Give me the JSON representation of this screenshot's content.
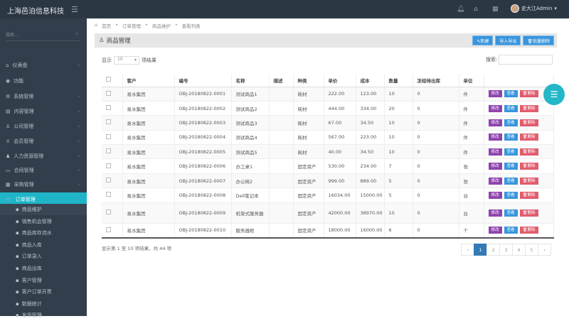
{
  "app": {
    "title": "上海邑泊信息科技",
    "user": "史大江Admin"
  },
  "sidebar": {
    "search_placeholder": "搜索...",
    "items": [
      {
        "label": "仪表盘",
        "icon": "⌂"
      },
      {
        "label": "功能",
        "icon": "◉"
      },
      {
        "label": "系统管理",
        "icon": "⚙"
      },
      {
        "label": "内容管理",
        "icon": "▤"
      },
      {
        "label": "公司管理",
        "icon": "♙"
      },
      {
        "label": "会员管理",
        "icon": "♕"
      },
      {
        "label": "人力资源管理",
        "icon": "♟"
      },
      {
        "label": "合同管理",
        "icon": "▭"
      },
      {
        "label": "采购管理",
        "icon": "▦"
      },
      {
        "label": "订单管理",
        "icon": "🛒"
      }
    ],
    "sub": [
      "商品维护",
      "销售机会管理",
      "商品库存流水",
      "商品入库",
      "订单录入",
      "商品出库",
      "客户管理",
      "客户订单开票",
      "数据统计",
      "发货管理"
    ]
  },
  "breadcrumb": [
    "首页",
    "订单管理",
    "商品维护",
    "查看列表"
  ],
  "panel": {
    "title": "商品管理",
    "new": "✎新建",
    "import": "导入导出",
    "batch_delete": "🗑批量删除"
  },
  "table_controls": {
    "show": "显示",
    "page_size": "10",
    "records": "项结果",
    "search": "搜索:"
  },
  "columns": [
    "客户",
    "编号",
    "名称",
    "描述",
    "种类",
    "单价",
    "成本",
    "数量",
    "冻结待出库",
    "单位"
  ],
  "actions": {
    "edit": "修改",
    "view": "查看",
    "delete": "删除"
  },
  "rows": [
    [
      "易水集团",
      "OBJ-20180822-0001",
      "测试商品1",
      "",
      "耗材",
      "222.00",
      "123.00",
      "10",
      "0",
      "件"
    ],
    [
      "易水集团",
      "OBJ-20180822-0002",
      "测试商品2",
      "",
      "耗材",
      "444.00",
      "334.00",
      "20",
      "0",
      "件"
    ],
    [
      "易水集团",
      "OBJ-20180822-0003",
      "测试商品3",
      "",
      "耗材",
      "67.00",
      "34.50",
      "10",
      "0",
      "件"
    ],
    [
      "易水集团",
      "OBJ-20180822-0004",
      "测试商品4",
      "",
      "耗材",
      "567.00",
      "223.00",
      "10",
      "0",
      "件"
    ],
    [
      "易水集团",
      "OBJ-20180822-0005",
      "测试商品5",
      "",
      "耗材",
      "40.00",
      "34.50",
      "10",
      "0",
      "件"
    ],
    [
      "易水集团",
      "OBJ-20180822-0006",
      "办工桌1",
      "",
      "固定资产",
      "530.00",
      "234.00",
      "7",
      "0",
      "张"
    ],
    [
      "易水集团",
      "OBJ-20180822-0007",
      "办公椅2",
      "",
      "固定资产",
      "999.00",
      "889.00",
      "5",
      "0",
      "张"
    ],
    [
      "易水集团",
      "OBJ-20180822-0008",
      "Dell笔记本",
      "",
      "固定资产",
      "16034.00",
      "15000.00",
      "5",
      "0",
      "台"
    ],
    [
      "易水集团",
      "OBJ-20180822-0009",
      "机架式服务器",
      "",
      "固定资产",
      "42000.00",
      "38970.00",
      "10",
      "0",
      "台"
    ],
    [
      "易水集团",
      "OBJ-20180822-0010",
      "服务器柜",
      "",
      "固定资产",
      "18000.00",
      "16000.00",
      "6",
      "0",
      "个"
    ]
  ],
  "footer": {
    "info": "显示第 1 至 10 项结果，共 44 项",
    "pages": [
      "‹",
      "1",
      "2",
      "3",
      "4",
      "5",
      "›"
    ],
    "current": "1"
  }
}
